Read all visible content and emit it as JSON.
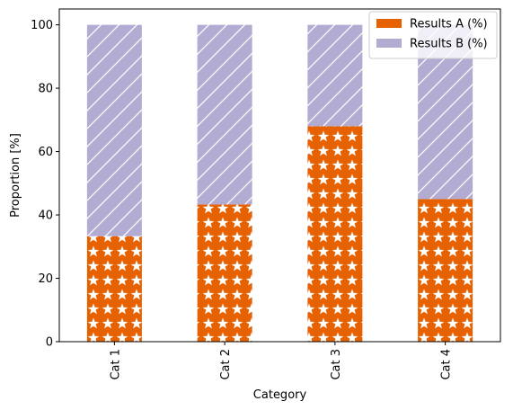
{
  "chart_data": {
    "type": "bar",
    "stacked": true,
    "categories": [
      "Cat 1",
      "Cat 2",
      "Cat 3",
      "Cat 4"
    ],
    "series": [
      {
        "name": "Results A (%)",
        "values": [
          33.3,
          43.3,
          68.0,
          45.0
        ],
        "color": "#e66101",
        "pattern": "stars"
      },
      {
        "name": "Results B (%)",
        "values": [
          66.7,
          56.7,
          32.0,
          55.0
        ],
        "color": "#b2abd2",
        "pattern": "diagonal-hatch"
      }
    ],
    "title": "",
    "xlabel": "Category",
    "ylabel": "Proportion [%]",
    "ylim": [
      0,
      105
    ],
    "yticks": [
      0,
      20,
      40,
      60,
      80,
      100
    ],
    "grid": false,
    "legend_position": "top-right"
  }
}
